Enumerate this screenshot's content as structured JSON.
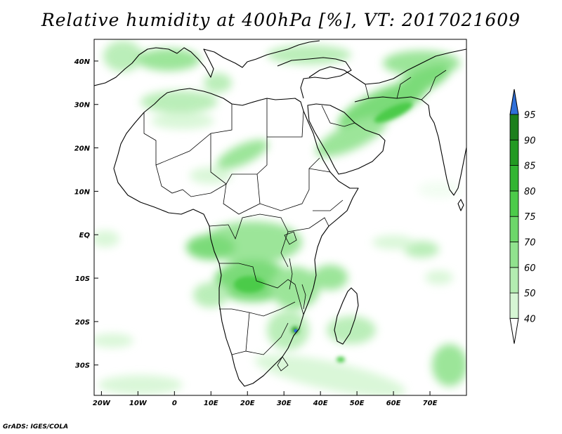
{
  "title": "Relative humidity at 400hPa [%], VT: 2017021609",
  "credit": "GrADS: IGES/COLA",
  "map": {
    "lon_range": [
      -22,
      80
    ],
    "lat_range": [
      -37,
      45
    ],
    "lon_ticks": [
      {
        "value": -20,
        "label": "20W"
      },
      {
        "value": -10,
        "label": "10W"
      },
      {
        "value": 0,
        "label": "0"
      },
      {
        "value": 10,
        "label": "10E"
      },
      {
        "value": 20,
        "label": "20E"
      },
      {
        "value": 30,
        "label": "30E"
      },
      {
        "value": 40,
        "label": "40E"
      },
      {
        "value": 50,
        "label": "50E"
      },
      {
        "value": 60,
        "label": "60E"
      },
      {
        "value": 70,
        "label": "70E"
      }
    ],
    "lat_ticks": [
      {
        "value": 40,
        "label": "40N"
      },
      {
        "value": 30,
        "label": "30N"
      },
      {
        "value": 20,
        "label": "20N"
      },
      {
        "value": 10,
        "label": "10N"
      },
      {
        "value": 0,
        "label": "EQ"
      },
      {
        "value": -10,
        "label": "10S"
      },
      {
        "value": -20,
        "label": "20S"
      },
      {
        "value": -30,
        "label": "30S"
      }
    ]
  },
  "colorbar": {
    "levels": [
      "40",
      "50",
      "60",
      "70",
      "75",
      "80",
      "85",
      "90",
      "95"
    ],
    "colors": [
      "#f1fdf1",
      "#d6f6d4",
      "#b3ecb1",
      "#91e28e",
      "#6dd76a",
      "#4ccb4a",
      "#33b533",
      "#239a23",
      "#1c7f1c"
    ],
    "over_color": "#2f6fd8",
    "under_color": "#ffffff"
  }
}
